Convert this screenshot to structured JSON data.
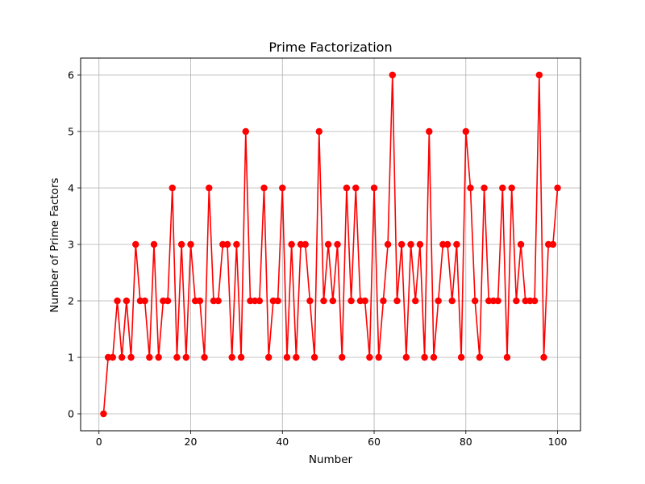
{
  "chart_data": {
    "type": "line",
    "title": "Prime Factorization",
    "xlabel": "Number",
    "ylabel": "Number of Prime Factors",
    "xlim": [
      -4,
      105
    ],
    "ylim": [
      -0.3,
      6.3
    ],
    "xticks": [
      0,
      20,
      40,
      60,
      80,
      100
    ],
    "yticks": [
      0,
      1,
      2,
      3,
      4,
      5,
      6
    ],
    "grid": true,
    "series": [
      {
        "color": "#ff0000",
        "marker": "circle",
        "x": [
          1,
          2,
          3,
          4,
          5,
          6,
          7,
          8,
          9,
          10,
          11,
          12,
          13,
          14,
          15,
          16,
          17,
          18,
          19,
          20,
          21,
          22,
          23,
          24,
          25,
          26,
          27,
          28,
          29,
          30,
          31,
          32,
          33,
          34,
          35,
          36,
          37,
          38,
          39,
          40,
          41,
          42,
          43,
          44,
          45,
          46,
          47,
          48,
          49,
          50,
          51,
          52,
          53,
          54,
          55,
          56,
          57,
          58,
          59,
          60,
          61,
          62,
          63,
          64,
          65,
          66,
          67,
          68,
          69,
          70,
          71,
          72,
          73,
          74,
          75,
          76,
          77,
          78,
          79,
          80,
          81,
          82,
          83,
          84,
          85,
          86,
          87,
          88,
          89,
          90,
          91,
          92,
          93,
          94,
          95,
          96,
          97,
          98,
          99,
          100
        ],
        "y": [
          0,
          1,
          1,
          2,
          1,
          2,
          1,
          3,
          2,
          2,
          1,
          3,
          1,
          2,
          2,
          4,
          1,
          3,
          1,
          3,
          2,
          2,
          1,
          4,
          2,
          2,
          3,
          3,
          1,
          3,
          1,
          5,
          2,
          2,
          2,
          4,
          1,
          2,
          2,
          4,
          1,
          3,
          1,
          3,
          3,
          2,
          1,
          5,
          2,
          3,
          2,
          3,
          1,
          4,
          2,
          4,
          2,
          2,
          1,
          4,
          1,
          2,
          3,
          6,
          2,
          3,
          1,
          3,
          2,
          3,
          1,
          5,
          1,
          2,
          3,
          3,
          2,
          3,
          1,
          5,
          4,
          2,
          1,
          4,
          2,
          2,
          2,
          4,
          1,
          4,
          2,
          3,
          2,
          2,
          2,
          6,
          1,
          3,
          3,
          4
        ]
      }
    ]
  }
}
